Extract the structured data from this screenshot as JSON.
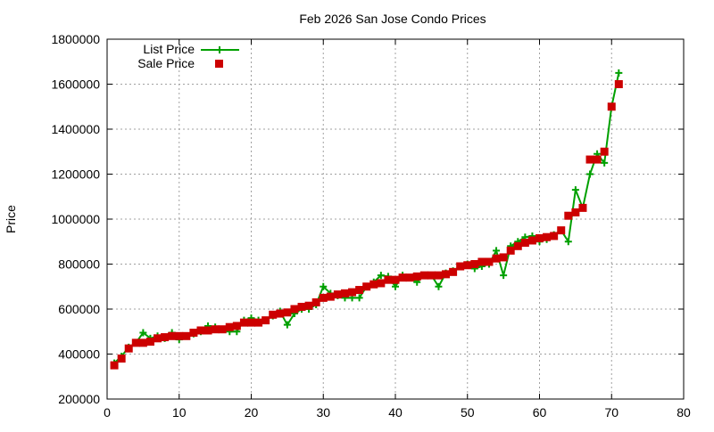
{
  "chart_data": {
    "type": "line",
    "title": "Feb 2026 San Jose Condo Prices",
    "xlabel": "",
    "ylabel": "Price",
    "xlim": [
      0,
      80
    ],
    "ylim": [
      200000,
      1800000
    ],
    "xticks": [
      0,
      10,
      20,
      30,
      40,
      50,
      60,
      70,
      80
    ],
    "yticks": [
      200000,
      400000,
      600000,
      800000,
      1000000,
      1200000,
      1400000,
      1600000,
      1800000
    ],
    "grid": true,
    "legend_position": "top-left",
    "x": [
      1,
      2,
      3,
      4,
      5,
      6,
      7,
      8,
      9,
      10,
      11,
      12,
      13,
      14,
      15,
      16,
      17,
      18,
      19,
      20,
      21,
      22,
      23,
      24,
      25,
      26,
      27,
      28,
      29,
      30,
      31,
      32,
      33,
      34,
      35,
      36,
      37,
      38,
      39,
      40,
      41,
      42,
      43,
      44,
      45,
      46,
      47,
      48,
      49,
      50,
      51,
      52,
      53,
      54,
      55,
      56,
      57,
      58,
      59,
      60,
      61,
      62,
      63,
      64,
      65,
      66,
      67,
      68,
      69,
      70,
      71
    ],
    "series": [
      {
        "name": "List Price",
        "style": "linespoints",
        "marker": "plus",
        "color": "#00a000",
        "values": [
          360000,
          390000,
          430000,
          450000,
          495000,
          470000,
          480000,
          470000,
          495000,
          465000,
          480000,
          490000,
          500000,
          525000,
          520000,
          510000,
          500000,
          500000,
          550000,
          560000,
          550000,
          550000,
          570000,
          590000,
          530000,
          580000,
          600000,
          600000,
          620000,
          700000,
          670000,
          660000,
          650000,
          650000,
          650000,
          700000,
          720000,
          750000,
          745000,
          700000,
          750000,
          740000,
          720000,
          750000,
          750000,
          700000,
          760000,
          770000,
          790000,
          800000,
          780000,
          790000,
          800000,
          860000,
          750000,
          880000,
          900000,
          920000,
          925000,
          900000,
          910000,
          930000,
          950000,
          900000,
          1130000,
          1050000,
          1200000,
          1290000,
          1250000,
          1500000,
          1650000
        ]
      },
      {
        "name": "Sale Price",
        "style": "points",
        "marker": "square",
        "color": "#cc0000",
        "values": [
          350000,
          380000,
          425000,
          450000,
          450000,
          455000,
          470000,
          475000,
          480000,
          480000,
          480000,
          495000,
          505000,
          505000,
          510000,
          510000,
          520000,
          525000,
          540000,
          540000,
          540000,
          550000,
          575000,
          580000,
          585000,
          600000,
          610000,
          615000,
          630000,
          650000,
          655000,
          665000,
          670000,
          675000,
          685000,
          700000,
          710000,
          715000,
          730000,
          730000,
          740000,
          740000,
          745000,
          750000,
          750000,
          750000,
          755000,
          765000,
          790000,
          795000,
          800000,
          810000,
          810000,
          825000,
          830000,
          860000,
          880000,
          895000,
          905000,
          915000,
          920000,
          925000,
          950000,
          1015000,
          1030000,
          1050000,
          1265000,
          1265000,
          1300000,
          1500000,
          1600000
        ]
      }
    ]
  }
}
